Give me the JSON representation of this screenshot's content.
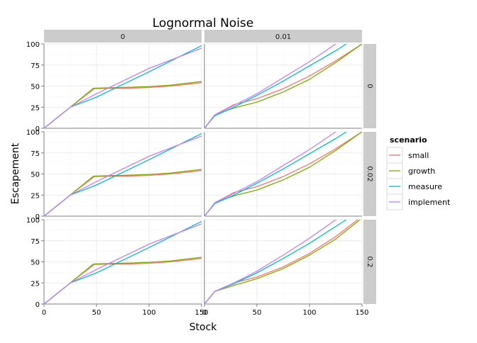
{
  "chart_data": {
    "type": "line",
    "title": "Lognormal Noise",
    "xlabel": "Stock",
    "ylabel": "Escapement",
    "xlim": [
      0,
      150
    ],
    "ylim": [
      0,
      100
    ],
    "x_ticks": [
      0,
      50,
      100,
      150
    ],
    "y_ticks": [
      0,
      25,
      50,
      75,
      100
    ],
    "grid": true,
    "facet_columns": [
      "0",
      "0.01"
    ],
    "facet_rows": [
      "0",
      "0.02",
      "0.2"
    ],
    "legend": {
      "title": "scenario",
      "position": "right",
      "entries": [
        "small",
        "growth",
        "measure",
        "implement"
      ]
    },
    "colors": {
      "small": "#F8766D",
      "growth": "#7CAE00",
      "measure": "#00BFC4",
      "implement": "#C77CFF",
      "strip_bg": "#cccccc",
      "panel_bg": "#ffffff",
      "grid": "#ebebeb",
      "axis": "#7f7f7f"
    },
    "panels": [
      {
        "col": "0",
        "row": "0",
        "series": [
          {
            "name": "small",
            "x": [
              0,
              25,
              48,
              60,
              80,
              100,
              120,
              150
            ],
            "y": [
              0,
              25,
              47,
              47.2,
              47.5,
              48.3,
              50,
              54
            ]
          },
          {
            "name": "growth",
            "x": [
              0,
              25,
              47,
              60,
              80,
              100,
              120,
              150
            ],
            "y": [
              0,
              25,
              47.5,
              48,
              48.5,
              49.5,
              51,
              55.5
            ]
          },
          {
            "name": "measure",
            "x": [
              0,
              25,
              50,
              100,
              150
            ],
            "y": [
              0,
              25,
              37,
              67,
              98
            ]
          },
          {
            "name": "implement",
            "x": [
              0,
              25,
              50,
              100,
              150
            ],
            "y": [
              0,
              25,
              41,
              71,
              95
            ]
          }
        ]
      },
      {
        "col": "0.01",
        "row": "0",
        "series": [
          {
            "name": "small",
            "x": [
              0,
              10,
              28,
              50,
              75,
              100,
              125,
              150
            ],
            "y": [
              0,
              16,
              28,
              35,
              47,
              62,
              80,
              100
            ]
          },
          {
            "name": "growth",
            "x": [
              0,
              10,
              28,
              50,
              75,
              100,
              125,
              150
            ],
            "y": [
              0,
              16,
              24,
              31,
              43,
              58,
              78,
              100
            ]
          },
          {
            "name": "measure",
            "x": [
              0,
              10,
              28,
              50,
              75,
              100,
              125,
              135
            ],
            "y": [
              0,
              15,
              25,
              39,
              56,
              74,
              92,
              100
            ]
          },
          {
            "name": "implement",
            "x": [
              0,
              10,
              28,
              50,
              75,
              100,
              125
            ],
            "y": [
              0,
              16,
              27,
              41,
              60,
              79,
              100
            ]
          }
        ]
      },
      {
        "col": "0",
        "row": "0.02",
        "series": [
          {
            "name": "small",
            "x": [
              0,
              25,
              48,
              60,
              80,
              100,
              120,
              150
            ],
            "y": [
              0,
              25,
              47,
              47.2,
              47.5,
              48.3,
              50,
              54
            ]
          },
          {
            "name": "growth",
            "x": [
              0,
              25,
              47,
              60,
              80,
              100,
              120,
              150
            ],
            "y": [
              0,
              25,
              47.5,
              48,
              48.5,
              49.5,
              51,
              55.5
            ]
          },
          {
            "name": "measure",
            "x": [
              0,
              25,
              50,
              100,
              150
            ],
            "y": [
              0,
              25,
              37,
              67,
              98
            ]
          },
          {
            "name": "implement",
            "x": [
              0,
              25,
              50,
              100,
              150
            ],
            "y": [
              0,
              25,
              41,
              71,
              95
            ]
          }
        ]
      },
      {
        "col": "0.01",
        "row": "0.02",
        "series": [
          {
            "name": "small",
            "x": [
              0,
              10,
              28,
              50,
              75,
              100,
              125,
              150
            ],
            "y": [
              0,
              16,
              28,
              35,
              47,
              62,
              80,
              100
            ]
          },
          {
            "name": "growth",
            "x": [
              0,
              10,
              28,
              50,
              75,
              100,
              125,
              150
            ],
            "y": [
              0,
              16,
              24,
              31,
              43,
              58,
              78,
              100
            ]
          },
          {
            "name": "measure",
            "x": [
              0,
              10,
              28,
              50,
              75,
              100,
              125,
              135
            ],
            "y": [
              0,
              15,
              25,
              39,
              56,
              74,
              92,
              100
            ]
          },
          {
            "name": "implement",
            "x": [
              0,
              10,
              28,
              50,
              75,
              100,
              125
            ],
            "y": [
              0,
              16,
              27,
              41,
              60,
              79,
              100
            ]
          }
        ]
      },
      {
        "col": "0",
        "row": "0.2",
        "series": [
          {
            "name": "small",
            "x": [
              0,
              25,
              48,
              60,
              80,
              100,
              120,
              150
            ],
            "y": [
              0,
              25,
              47,
              47.2,
              47.5,
              48.3,
              50,
              54
            ]
          },
          {
            "name": "growth",
            "x": [
              0,
              25,
              47,
              60,
              80,
              100,
              120,
              150
            ],
            "y": [
              0,
              25,
              47.5,
              48,
              48.5,
              49.5,
              51,
              55.5
            ]
          },
          {
            "name": "measure",
            "x": [
              0,
              25,
              50,
              100,
              150
            ],
            "y": [
              0,
              25,
              37,
              67,
              98
            ]
          },
          {
            "name": "implement",
            "x": [
              0,
              25,
              50,
              100,
              150
            ],
            "y": [
              0,
              25,
              41,
              71,
              95
            ]
          }
        ]
      },
      {
        "col": "0.01",
        "row": "0.2",
        "series": [
          {
            "name": "small",
            "x": [
              0,
              10,
              28,
              50,
              75,
              100,
              125,
              150
            ],
            "y": [
              0,
              15,
              25,
              32,
              44,
              60,
              80,
              104
            ]
          },
          {
            "name": "growth",
            "x": [
              0,
              10,
              28,
              50,
              75,
              100,
              125,
              150
            ],
            "y": [
              0,
              15,
              22,
              30,
              42,
              58,
              77,
              102
            ]
          },
          {
            "name": "measure",
            "x": [
              0,
              10,
              28,
              50,
              75,
              100,
              125,
              135
            ],
            "y": [
              0,
              15,
              24,
              37,
              54,
              72,
              92,
              100
            ]
          },
          {
            "name": "implement",
            "x": [
              0,
              10,
              28,
              50,
              75,
              100,
              125
            ],
            "y": [
              0,
              15,
              25,
              39,
              58,
              78,
              100
            ]
          }
        ]
      }
    ]
  }
}
